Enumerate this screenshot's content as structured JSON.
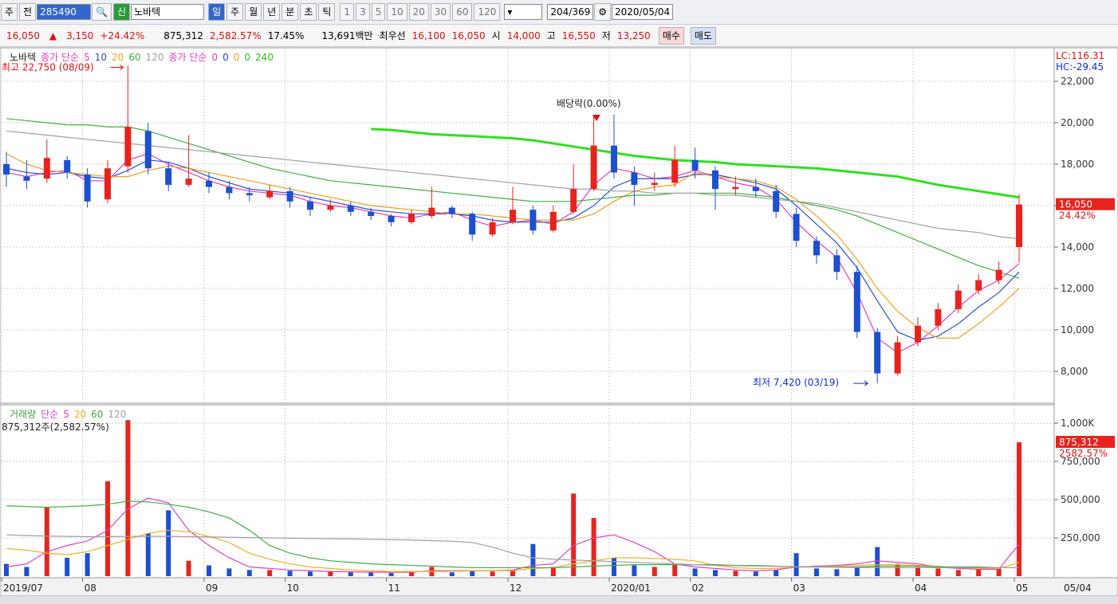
{
  "toolbar": {
    "market": "주",
    "prev": "전",
    "code": "285490",
    "badge": "신",
    "name": "노바텍",
    "periods": [
      "일",
      "주",
      "월",
      "년",
      "분",
      "초",
      "틱"
    ],
    "intervals": [
      "1",
      "3",
      "5",
      "10",
      "20",
      "30",
      "60",
      "120"
    ],
    "count": "204",
    "total": "/369",
    "date": "2020/05/04"
  },
  "info": {
    "price": "16,050",
    "arrow": "▲",
    "change": "3,150",
    "rate": "+24.42%",
    "volume": "875,312",
    "volume_rate": "2,582.57%",
    "turnover": "17.45%",
    "amount": "13,691백만",
    "best_label": "최우선",
    "ask": "16,100",
    "bid": "16,050",
    "open_label": "시",
    "open": "14,000",
    "high_label": "고",
    "high": "16,550",
    "low_label": "저",
    "low": "13,250",
    "buy": "매수",
    "sell": "매도"
  },
  "chart_data": [
    {
      "type": "candlestick",
      "name": "노바텍",
      "legend_label": "종가 단순",
      "legend2_label": "종가 단순",
      "legend2_items": [
        "0",
        "0",
        "0",
        "0"
      ],
      "lc": "LC:116.31",
      "hc": "HC:-29.45",
      "date_label": "05/04",
      "categories": [
        "2019/07",
        null,
        null,
        null,
        "08",
        null,
        null,
        null,
        null,
        null,
        "09",
        null,
        null,
        null,
        "10",
        null,
        null,
        null,
        null,
        "11",
        null,
        null,
        null,
        null,
        null,
        "12",
        null,
        null,
        null,
        null,
        "2020/01",
        null,
        null,
        null,
        "02",
        null,
        null,
        null,
        null,
        "03",
        null,
        null,
        null,
        null,
        null,
        "04",
        null,
        null,
        null,
        null,
        "05"
      ],
      "open": [
        18000,
        17400,
        17300,
        18200,
        17500,
        16300,
        17900,
        19600,
        17800,
        17000,
        17200,
        16900,
        16600,
        16400,
        16700,
        16200,
        15800,
        16000,
        15700,
        15500,
        15200,
        15500,
        15900,
        15600,
        14600,
        15200,
        15800,
        14800,
        15700,
        16800,
        18900,
        17600,
        17000,
        17100,
        18200,
        17700,
        16800,
        16900,
        16700,
        15600,
        14300,
        13600,
        12800,
        9900,
        7900,
        9400,
        10200,
        11000,
        11900,
        12400,
        14000
      ],
      "high": [
        18600,
        18200,
        19200,
        18400,
        17800,
        18200,
        22750,
        20000,
        18100,
        19400,
        17600,
        17200,
        16900,
        17000,
        16900,
        16400,
        16300,
        16200,
        15900,
        15600,
        15800,
        16900,
        16000,
        15700,
        15400,
        16900,
        16000,
        16000,
        18000,
        20300,
        20400,
        17900,
        17600,
        18900,
        18800,
        17900,
        17400,
        17300,
        17000,
        15900,
        14500,
        13900,
        13100,
        10100,
        9700,
        10600,
        11300,
        12200,
        12700,
        13300,
        16550
      ],
      "low": [
        16900,
        16800,
        17100,
        17300,
        15900,
        16100,
        17600,
        17500,
        16700,
        16900,
        16600,
        16300,
        16200,
        16300,
        15900,
        15500,
        15700,
        15500,
        15300,
        15000,
        15100,
        15400,
        15400,
        14300,
        14500,
        15100,
        14600,
        14700,
        15600,
        16700,
        17300,
        16000,
        16700,
        16900,
        17300,
        15800,
        16500,
        16400,
        15400,
        14000,
        13200,
        12400,
        9600,
        7420,
        7800,
        9200,
        10000,
        10800,
        11700,
        12200,
        13250
      ],
      "close": [
        17500,
        17200,
        18300,
        17600,
        16200,
        17800,
        19800,
        17800,
        17000,
        17300,
        16900,
        16600,
        16500,
        16700,
        16200,
        15800,
        16000,
        15700,
        15500,
        15200,
        15600,
        15900,
        15600,
        14600,
        15200,
        15800,
        14800,
        15700,
        16800,
        18900,
        17600,
        17000,
        17100,
        18200,
        17700,
        16800,
        16900,
        16700,
        15700,
        14300,
        13600,
        12800,
        9900,
        7900,
        9400,
        10200,
        11000,
        11900,
        12400,
        12900,
        16050
      ],
      "up_color": "#e8231e",
      "down_color": "#1d4fd0",
      "ylim": [
        6500,
        23540
      ],
      "yticks": [
        {
          "value": 8000,
          "label": "8,000"
        },
        {
          "value": 10000,
          "label": "10,000"
        },
        {
          "value": 12000,
          "label": "12,000"
        },
        {
          "value": 14000,
          "label": "14,000"
        },
        {
          "value": 16000,
          "label": "16,000"
        },
        {
          "value": 18000,
          "label": "18,000"
        },
        {
          "value": 20000,
          "label": "20,000"
        },
        {
          "value": 22000,
          "label": "22,000"
        }
      ],
      "grid": true,
      "series": [
        {
          "name": "5",
          "color": "#e040c0",
          "values": [
            17600,
            17400,
            17600,
            17700,
            17200,
            17200,
            18200,
            18500,
            18000,
            17600,
            17200,
            16900,
            16700,
            16600,
            16500,
            16200,
            16000,
            15900,
            15700,
            15500,
            15400,
            15600,
            15700,
            15300,
            15000,
            15200,
            15300,
            15100,
            15700,
            17000,
            17800,
            17600,
            17300,
            17400,
            17700,
            17400,
            17100,
            16900,
            16300,
            15200,
            14300,
            13500,
            11800,
            9600,
            8900,
            9400,
            10200,
            11100,
            11900,
            12400,
            13200
          ]
        },
        {
          "name": "10",
          "color": "#3050d0",
          "values": [
            17800,
            17600,
            17500,
            17600,
            17400,
            17300,
            17700,
            18200,
            18100,
            17800,
            17400,
            17100,
            16800,
            16700,
            16600,
            16400,
            16200,
            16000,
            15800,
            15700,
            15600,
            15600,
            15600,
            15500,
            15300,
            15200,
            15200,
            15200,
            15400,
            16000,
            16900,
            17300,
            17300,
            17300,
            17500,
            17500,
            17300,
            17100,
            16800,
            16000,
            15100,
            14200,
            13000,
            11400,
            9900,
            9500,
            9700,
            10300,
            11100,
            11800,
            12800
          ]
        },
        {
          "name": "20",
          "color": "#f0a020",
          "values": [
            18500,
            18000,
            17700,
            17600,
            17500,
            17400,
            17400,
            17700,
            17900,
            17800,
            17600,
            17400,
            17200,
            17000,
            16800,
            16600,
            16400,
            16200,
            16000,
            15900,
            15800,
            15700,
            15600,
            15600,
            15500,
            15400,
            15300,
            15300,
            15300,
            15600,
            16200,
            16700,
            16900,
            17000,
            17600,
            17400,
            17300,
            17200,
            16900,
            16300,
            15500,
            14600,
            13400,
            12000,
            10900,
            10100,
            9600,
            9600,
            10300,
            11100,
            12000
          ]
        },
        {
          "name": "60",
          "color": "#40b040",
          "values": [
            20200,
            20100,
            20000,
            19900,
            19900,
            19800,
            19800,
            19600,
            19300,
            19000,
            18700,
            18400,
            18100,
            17800,
            17600,
            17400,
            17200,
            17100,
            17000,
            16900,
            16800,
            16700,
            16600,
            16500,
            16400,
            16300,
            16200,
            16200,
            16200,
            16300,
            16400,
            16500,
            16500,
            16600,
            16600,
            16600,
            16600,
            16500,
            16400,
            16200,
            16000,
            15800,
            15500,
            15100,
            14700,
            14300,
            13900,
            13500,
            13100,
            12800,
            12500
          ]
        },
        {
          "name": "120",
          "color": "#a0a0a0",
          "values": [
            19600,
            19500,
            19400,
            19300,
            19200,
            19100,
            19000,
            18900,
            18800,
            18700,
            18600,
            18500,
            18400,
            18300,
            18200,
            18100,
            18000,
            17900,
            17800,
            17700,
            17600,
            17500,
            17400,
            17300,
            17200,
            17100,
            17000,
            16900,
            16800,
            16800,
            16700,
            16700,
            16600,
            16600,
            16600,
            16500,
            16500,
            16400,
            16300,
            16200,
            16100,
            15900,
            15700,
            15500,
            15300,
            15100,
            14900,
            14800,
            14700,
            14500,
            14400
          ]
        },
        {
          "name": "240",
          "color": "#30e020",
          "values": [
            null,
            null,
            null,
            null,
            null,
            null,
            null,
            null,
            null,
            null,
            null,
            null,
            null,
            null,
            null,
            null,
            null,
            null,
            19700,
            19650,
            19550,
            19450,
            19400,
            19350,
            19300,
            19250,
            19150,
            19000,
            18850,
            18700,
            18550,
            18400,
            18300,
            18200,
            18150,
            18100,
            18000,
            17950,
            17900,
            17850,
            17800,
            17700,
            17600,
            17500,
            17400,
            17200,
            17000,
            16850,
            16700,
            16550,
            16400
          ]
        }
      ],
      "annotations": {
        "high": "최고 22,750 (08/09)",
        "dividend": "배당락(0.00%)",
        "low": "최저 7,420 (03/19)"
      },
      "marker": {
        "value": 16050,
        "label": "16,050",
        "change": "24.42%"
      }
    },
    {
      "type": "bar",
      "title": "거래량",
      "legend_label": "단순",
      "values": [
        80000,
        60000,
        450000,
        120000,
        150000,
        620000,
        1020000,
        280000,
        430000,
        100000,
        70000,
        50000,
        40000,
        40000,
        35000,
        30000,
        30000,
        25000,
        25000,
        20000,
        25000,
        60000,
        25000,
        35000,
        30000,
        40000,
        210000,
        60000,
        540000,
        380000,
        120000,
        70000,
        60000,
        80000,
        50000,
        40000,
        35000,
        30000,
        40000,
        150000,
        50000,
        45000,
        60000,
        190000,
        80000,
        60000,
        50000,
        40000,
        45000,
        50000,
        875312
      ],
      "ylim": [
        0,
        1110000
      ],
      "yticks": [
        {
          "value": 250000,
          "label": "250,000"
        },
        {
          "value": 500000,
          "label": "500,000"
        },
        {
          "value": 750000,
          "label": "750,000"
        },
        {
          "value": 1000000,
          "label": "1,000K"
        }
      ],
      "series": [
        {
          "name": "5",
          "color": "#e040c0",
          "values": [
            60000,
            80000,
            160000,
            200000,
            230000,
            300000,
            440000,
            510000,
            480000,
            300000,
            200000,
            120000,
            60000,
            50000,
            40000,
            35000,
            30000,
            28000,
            26000,
            25000,
            25000,
            35000,
            35000,
            35000,
            35000,
            40000,
            70000,
            80000,
            200000,
            250000,
            270000,
            220000,
            160000,
            80000,
            60000,
            50000,
            40000,
            35000,
            40000,
            60000,
            65000,
            70000,
            80000,
            100000,
            90000,
            80000,
            60000,
            50000,
            45000,
            45000,
            210000
          ]
        },
        {
          "name": "20",
          "color": "#f0b020",
          "values": [
            180000,
            170000,
            150000,
            140000,
            160000,
            200000,
            240000,
            280000,
            300000,
            290000,
            260000,
            220000,
            150000,
            110000,
            80000,
            60000,
            50000,
            40000,
            35000,
            30000,
            30000,
            30000,
            32000,
            34000,
            35000,
            36000,
            50000,
            55000,
            80000,
            100000,
            120000,
            120000,
            115000,
            110000,
            100000,
            70000,
            55000,
            50000,
            50000,
            60000,
            60000,
            65000,
            70000,
            75000,
            75000,
            70000,
            65000,
            55000,
            50000,
            50000,
            90000
          ]
        },
        {
          "name": "60",
          "color": "#40b040",
          "values": [
            460000,
            455000,
            450000,
            455000,
            460000,
            470000,
            490000,
            485000,
            470000,
            450000,
            420000,
            380000,
            300000,
            200000,
            150000,
            120000,
            100000,
            90000,
            80000,
            75000,
            70000,
            65000,
            60000,
            55000,
            55000,
            55000,
            55000,
            55000,
            60000,
            65000,
            70000,
            75000,
            75000,
            75000,
            75000,
            75000,
            70000,
            70000,
            65000,
            60000,
            60000,
            60000,
            60000,
            65000,
            65000,
            65000,
            60000,
            60000,
            60000,
            55000,
            55000
          ]
        },
        {
          "name": "120",
          "color": "#a0a0a0",
          "values": [
            270000,
            265000,
            262000,
            260000,
            258000,
            258000,
            260000,
            260000,
            260000,
            258000,
            256000,
            254000,
            252000,
            250000,
            248000,
            246000,
            245000,
            243000,
            241000,
            239000,
            236000,
            232000,
            228000,
            220000,
            190000,
            150000,
            120000,
            110000,
            105000,
            100000,
            95000,
            90000,
            85000,
            80000,
            75000,
            70000,
            68000,
            66000,
            64000,
            62000,
            60000,
            58000,
            56000,
            55000,
            55000,
            55000,
            55000,
            55000,
            55000,
            55000,
            55000
          ]
        }
      ],
      "note": "875,312주(2,582.57%)",
      "marker": {
        "value": 875312,
        "label": "875,312",
        "change": "2582.57%"
      }
    }
  ]
}
